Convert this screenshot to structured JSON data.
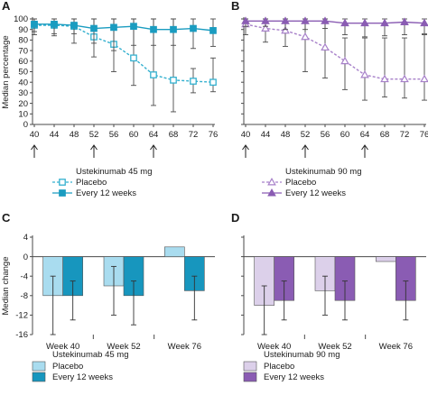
{
  "chart_data": [
    {
      "panel": "A",
      "type": "line",
      "ylabel": "Median percentage",
      "xlabel": "",
      "ylim": [
        0,
        100
      ],
      "yticks": [
        0,
        10,
        20,
        30,
        40,
        50,
        60,
        70,
        80,
        90,
        100
      ],
      "xticks": [
        40,
        44,
        48,
        52,
        56,
        60,
        64,
        68,
        72,
        76
      ],
      "xlim": [
        40,
        76
      ],
      "arrows_at": [
        40,
        52,
        64
      ],
      "grid": false,
      "legend_title": "Ustekinumab 45 mg",
      "legend_position": "below",
      "series": [
        {
          "name": "Placebo",
          "color": "#33b0cf",
          "marker": "open-square",
          "dashed": true,
          "x": [
            40,
            44,
            48,
            52,
            56,
            60,
            64,
            68,
            72,
            76
          ],
          "y": [
            94,
            94,
            93,
            83,
            76,
            63,
            47,
            42,
            41,
            40
          ],
          "lower": [
            88,
            84,
            77,
            64,
            50,
            37,
            18,
            12,
            30,
            31
          ],
          "upper": [
            100,
            100,
            100,
            100,
            100,
            100,
            100,
            100,
            53,
            63
          ]
        },
        {
          "name": "Every 12 weeks",
          "color": "#1a9cc0",
          "marker": "filled-square",
          "dashed": false,
          "x": [
            40,
            44,
            48,
            52,
            56,
            60,
            64,
            68,
            72,
            76
          ],
          "y": [
            95,
            95,
            94,
            91,
            92,
            93,
            90,
            90,
            91,
            89
          ],
          "lower": [
            85,
            86,
            86,
            77,
            70,
            75,
            75,
            75,
            72,
            74
          ],
          "upper": [
            100,
            100,
            100,
            100,
            100,
            100,
            100,
            100,
            100,
            100
          ]
        }
      ]
    },
    {
      "panel": "B",
      "type": "line",
      "ylabel": "",
      "xlabel": "",
      "ylim": [
        0,
        100
      ],
      "yticks": [
        0,
        10,
        20,
        30,
        40,
        50,
        60,
        70,
        80,
        90,
        100
      ],
      "xticks": [
        40,
        44,
        48,
        52,
        56,
        60,
        64,
        68,
        72,
        76
      ],
      "xlim": [
        40,
        76
      ],
      "arrows_at": [
        40,
        52,
        64
      ],
      "grid": false,
      "legend_title": "Ustekinumab 90 mg",
      "legend_position": "below",
      "series": [
        {
          "name": "Placebo",
          "color": "#a780c9",
          "marker": "open-triangle",
          "dashed": true,
          "x": [
            40,
            44,
            48,
            52,
            56,
            60,
            64,
            68,
            72,
            76
          ],
          "y": [
            95,
            91,
            89,
            83,
            73,
            60,
            47,
            43,
            43,
            43
          ],
          "lower": [
            85,
            78,
            74,
            50,
            44,
            33,
            23,
            26,
            25,
            23
          ],
          "upper": [
            100,
            100,
            100,
            100,
            100,
            82,
            82,
            82,
            82,
            85
          ]
        },
        {
          "name": "Every 12 weeks",
          "color": "#8a5cb3",
          "marker": "filled-triangle",
          "dashed": false,
          "x": [
            40,
            44,
            48,
            52,
            56,
            60,
            64,
            68,
            72,
            76
          ],
          "y": [
            98,
            98,
            98,
            98,
            98,
            96,
            96,
            96,
            97,
            96
          ],
          "lower": [
            93,
            93,
            90,
            90,
            91,
            85,
            83,
            84,
            85,
            86
          ],
          "upper": [
            100,
            100,
            100,
            100,
            100,
            100,
            100,
            100,
            100,
            100
          ]
        }
      ]
    },
    {
      "panel": "C",
      "type": "bar",
      "ylabel": "Median change",
      "xlabel": "",
      "ylim": [
        -16,
        4
      ],
      "yticks": [
        4,
        0,
        -4,
        -8,
        -12,
        -16
      ],
      "categories": [
        "Week 40",
        "Week 52",
        "Week 76"
      ],
      "grid": false,
      "legend_title": "Ustekinumab 45 mg",
      "legend_position": "below",
      "series": [
        {
          "name": "Placebo",
          "color": "#a9dcef",
          "values": [
            -8,
            -6,
            2
          ],
          "lower": [
            -16,
            -12,
            null
          ],
          "upper": [
            -4,
            -2,
            null
          ]
        },
        {
          "name": "Every 12 weeks",
          "color": "#1796be",
          "values": [
            -8,
            -8,
            -7
          ],
          "lower": [
            -13,
            -14,
            -13
          ],
          "upper": [
            -5,
            -5,
            -4
          ]
        }
      ]
    },
    {
      "panel": "D",
      "type": "bar",
      "ylabel": "",
      "xlabel": "",
      "ylim": [
        -16,
        4
      ],
      "yticks": [
        4,
        0,
        -4,
        -8,
        -12,
        -16
      ],
      "categories": [
        "Week 40",
        "Week 52",
        "Week 76"
      ],
      "grid": false,
      "legend_title": "Ustekinumab 90 mg",
      "legend_position": "below",
      "series": [
        {
          "name": "Placebo",
          "color": "#dcd0ea",
          "values": [
            -10,
            -7,
            -1
          ],
          "lower": [
            -16,
            -12,
            null
          ],
          "upper": [
            -6,
            -4,
            null
          ]
        },
        {
          "name": "Every 12 weeks",
          "color": "#8a5cb3",
          "values": [
            -9,
            -9,
            -9
          ],
          "lower": [
            -13,
            -13,
            -13
          ],
          "upper": [
            -5,
            -5,
            -5
          ]
        }
      ]
    }
  ]
}
